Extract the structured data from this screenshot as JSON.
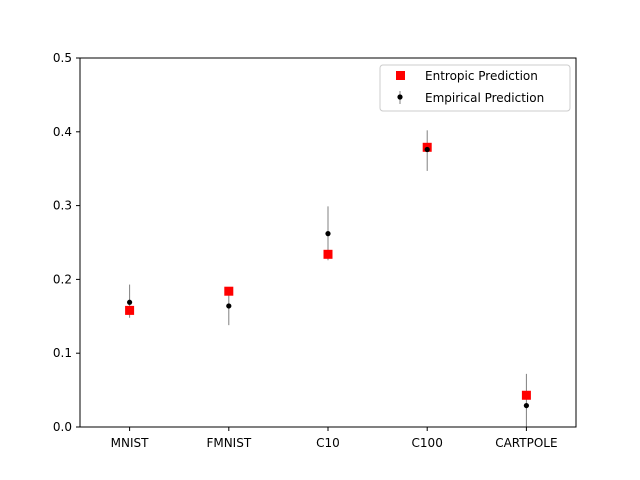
{
  "chart_data": {
    "type": "scatter",
    "title": "",
    "xlabel": "",
    "ylabel": "",
    "categories": [
      "MNIST",
      "FMNIST",
      "C10",
      "C100",
      "CARTPOLE"
    ],
    "ylim": [
      0,
      0.5
    ],
    "yticks": [
      "0.0",
      "0.1",
      "0.2",
      "0.3",
      "0.4",
      "0.5"
    ],
    "grid": false,
    "legend_position": "top-right",
    "series": [
      {
        "name": "Entropic Prediction",
        "marker": "square",
        "color": "#ff0000",
        "values": [
          0.158,
          0.184,
          0.234,
          0.379,
          0.043
        ]
      },
      {
        "name": "Empirical Prediction",
        "marker": "circle",
        "color": "#000000",
        "error_color": "#808080",
        "values": [
          0.169,
          0.164,
          0.262,
          0.376,
          0.029
        ],
        "error_low": [
          0.148,
          0.138,
          0.226,
          0.347,
          0.0
        ],
        "error_high": [
          0.193,
          0.189,
          0.299,
          0.402,
          0.072
        ]
      }
    ]
  }
}
